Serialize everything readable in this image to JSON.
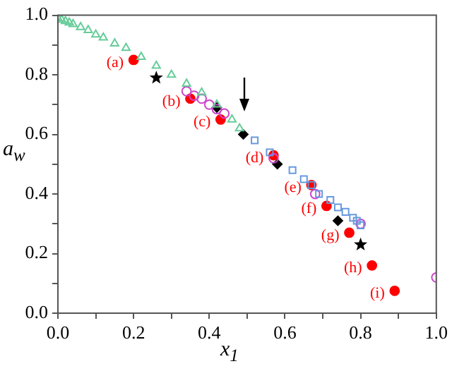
{
  "chart_data": {
    "type": "scatter",
    "xlabel": "x$_{1}$",
    "ylabel": "a$_{w}$",
    "xlim": [
      0,
      1
    ],
    "ylim": [
      0,
      1
    ],
    "xticks": [
      {
        "value": 0,
        "label": "0.0"
      },
      {
        "value": 0.1,
        "label": null
      },
      0.2,
      {
        "value": 0.3,
        "label": null
      },
      0.4,
      {
        "value": 0.5,
        "label": null
      },
      0.6,
      {
        "value": 0.7,
        "label": null
      },
      0.8,
      {
        "value": 0.9,
        "label": null
      },
      {
        "value": 1,
        "label": "1.0"
      }
    ],
    "yticks": [
      {
        "value": 0,
        "label": "0.0"
      },
      {
        "value": 0.1,
        "label": null
      },
      0.2,
      {
        "value": 0.3,
        "label": null
      },
      0.4,
      {
        "value": 0.5,
        "label": null
      },
      0.6,
      {
        "value": 0.7,
        "label": null
      },
      0.8,
      {
        "value": 0.9,
        "label": null
      },
      {
        "value": 1,
        "label": "1.0"
      }
    ],
    "grid": false,
    "legend": false,
    "series": [
      {
        "color": "#66cc99",
        "marker": "triangle",
        "x": [
          0,
          0.01,
          0.02,
          0.03,
          0.04,
          0.06,
          0.08,
          0.1,
          0.12,
          0.15,
          0.18,
          0.22,
          0.26,
          0.3,
          0.34,
          0.38,
          0.42,
          0.46,
          0.48
        ],
        "values": [
          0.99,
          0.985,
          0.98,
          0.975,
          0.97,
          0.96,
          0.95,
          0.935,
          0.925,
          0.905,
          0.89,
          0.86,
          0.83,
          0.8,
          0.77,
          0.74,
          0.7,
          0.65,
          0.62
        ]
      },
      {
        "color": "#6699dd",
        "marker": "square",
        "x": [
          0.52,
          0.56,
          0.62,
          0.65,
          0.67,
          0.69,
          0.72,
          0.74,
          0.76,
          0.78,
          0.79,
          0.8
        ],
        "values": [
          0.58,
          0.54,
          0.48,
          0.45,
          0.43,
          0.4,
          0.38,
          0.355,
          0.34,
          0.32,
          0.31,
          0.295
        ]
      },
      {
        "color": "#cc44cc",
        "marker": "circle",
        "x": [
          0.34,
          0.36,
          0.38,
          0.4,
          0.42,
          0.44,
          0.57,
          0.68,
          0.8,
          1.0
        ],
        "values": [
          0.745,
          0.73,
          0.72,
          0.7,
          0.685,
          0.67,
          0.52,
          0.4,
          0.3,
          0.12
        ]
      },
      {
        "color": "#000000",
        "marker": "diamond",
        "x": [
          0.42,
          0.49,
          0.58,
          0.74
        ],
        "values": [
          0.69,
          0.6,
          0.5,
          0.31
        ]
      },
      {
        "color": "#000000",
        "marker": "star",
        "x": [
          0.26,
          0.8
        ],
        "values": [
          0.79,
          0.23
        ]
      },
      {
        "color": "#ff0000",
        "marker": "circle",
        "x": [
          0.2,
          0.35,
          0.43,
          0.57,
          0.67,
          0.71,
          0.77,
          0.83,
          0.89
        ],
        "values": [
          0.85,
          0.72,
          0.65,
          0.53,
          0.43,
          0.36,
          0.27,
          0.16,
          0.075
        ]
      }
    ],
    "annotations": [
      {
        "text": "(a)",
        "x": 0.2,
        "y": 0.85
      },
      {
        "text": "(b)",
        "x": 0.35,
        "y": 0.72
      },
      {
        "text": "(c)",
        "x": 0.43,
        "y": 0.65
      },
      {
        "text": "(d)",
        "x": 0.57,
        "y": 0.53
      },
      {
        "text": "(e)",
        "x": 0.67,
        "y": 0.43
      },
      {
        "text": "(f)",
        "x": 0.71,
        "y": 0.36
      },
      {
        "text": "(g)",
        "x": 0.77,
        "y": 0.27
      },
      {
        "text": "(h)",
        "x": 0.83,
        "y": 0.16
      },
      {
        "text": "(i)",
        "x": 0.89,
        "y": 0.075
      }
    ]
  }
}
